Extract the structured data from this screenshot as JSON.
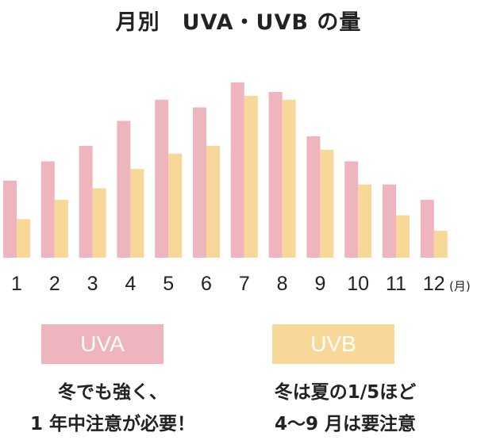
{
  "chart_data": {
    "type": "bar",
    "title": "月別　UVA・UVB の量",
    "categories": [
      "1",
      "2",
      "3",
      "4",
      "5",
      "6",
      "7",
      "8",
      "9",
      "10",
      "11",
      "12"
    ],
    "unit_label": "(月)",
    "series": [
      {
        "name": "UVA",
        "values": [
          40,
          50,
          58,
          71,
          82,
          78,
          91,
          86,
          63,
          50,
          38,
          30
        ]
      },
      {
        "name": "UVB",
        "values": [
          20,
          30,
          36,
          46,
          54,
          58,
          84,
          82,
          56,
          38,
          22,
          14
        ]
      }
    ],
    "ylim": [
      0,
      100
    ],
    "grid": false,
    "colors": {
      "uva": "#eeb5bf",
      "uvb": "#f7d898"
    }
  },
  "legend": {
    "uva_label": "UVA",
    "uvb_label": "UVB"
  },
  "notes": {
    "uva_line1": "冬でも強く、",
    "uva_line2": "1 年中注意が必要！",
    "uvb_line1": "冬は夏の1/5ほど",
    "uvb_line2": "4〜9 月は要注意"
  }
}
